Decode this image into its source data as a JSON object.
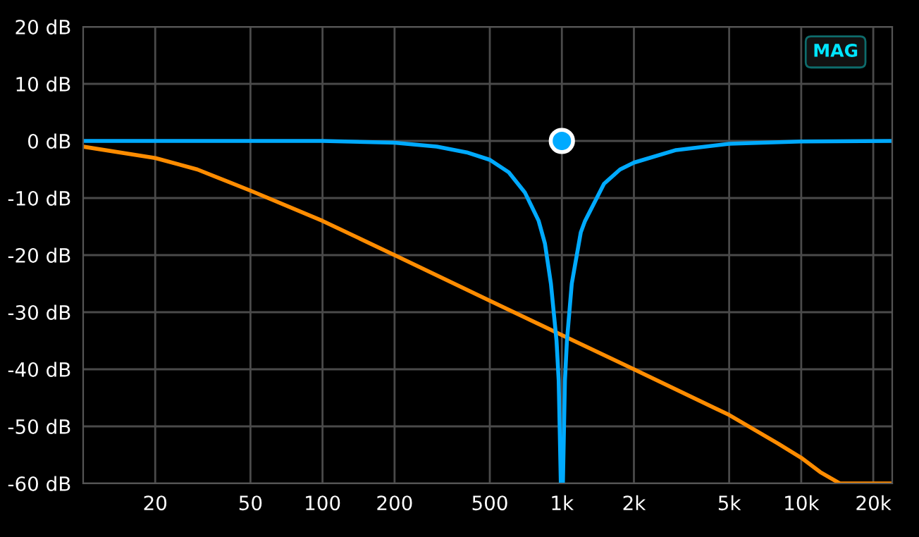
{
  "chart_data": {
    "type": "line",
    "log": "x",
    "grid": true,
    "legend": false,
    "xlim": [
      10,
      24000
    ],
    "ylim": [
      -60,
      20
    ],
    "xticks": [
      {
        "value": 20,
        "label": "20"
      },
      {
        "value": 50,
        "label": "50"
      },
      {
        "value": 100,
        "label": "100"
      },
      {
        "value": 200,
        "label": "200"
      },
      {
        "value": 500,
        "label": "500"
      },
      {
        "value": 1000,
        "label": "1k"
      },
      {
        "value": 2000,
        "label": "2k"
      },
      {
        "value": 5000,
        "label": "5k"
      },
      {
        "value": 10000,
        "label": "10k"
      },
      {
        "value": 20000,
        "label": "20k"
      }
    ],
    "yticks": [
      {
        "value": -60,
        "label": "-60 dB"
      },
      {
        "value": -50,
        "label": "-50 dB"
      },
      {
        "value": -40,
        "label": "-40 dB"
      },
      {
        "value": -30,
        "label": "-30 dB"
      },
      {
        "value": -20,
        "label": "-20 dB"
      },
      {
        "value": -10,
        "label": "-10 dB"
      },
      {
        "value": 0,
        "label": "0 dB"
      },
      {
        "value": 10,
        "label": "10 dB"
      },
      {
        "value": 20,
        "label": "20 dB"
      }
    ],
    "annotations": [
      "MAG"
    ],
    "series": [
      {
        "color": "#ff8c00",
        "marker": "none",
        "x": [
          10,
          20,
          30,
          50,
          100,
          200,
          500,
          1000,
          2000,
          5000,
          8000,
          10000,
          12000,
          14500,
          24000
        ],
        "values": [
          -1,
          -3,
          -5,
          -8.7,
          -14,
          -20,
          -28,
          -34,
          -40,
          -48,
          -53,
          -55.5,
          -58,
          -60,
          -60
        ]
      },
      {
        "color": "#00aaff",
        "marker": "none",
        "x": [
          10,
          100,
          200,
          300,
          400,
          500,
          600,
          700,
          800,
          850,
          900,
          950,
          970,
          990,
          1000,
          1010,
          1030,
          1050,
          1100,
          1200,
          1250,
          1500,
          1750,
          2000,
          3000,
          5000,
          10000,
          24000
        ],
        "values": [
          0,
          0,
          -0.3,
          -1,
          -2,
          -3.3,
          -5.5,
          -9,
          -14,
          -18,
          -25,
          -35,
          -42,
          -60,
          -60,
          -60,
          -42,
          -35,
          -25,
          -16,
          -14,
          -7.5,
          -5,
          -3.8,
          -1.6,
          -0.5,
          -0.1,
          0
        ]
      },
      {
        "type": "scatter",
        "color": "#00aaff",
        "marker": "circle",
        "x": [
          1000
        ],
        "values": [
          0
        ]
      }
    ]
  }
}
